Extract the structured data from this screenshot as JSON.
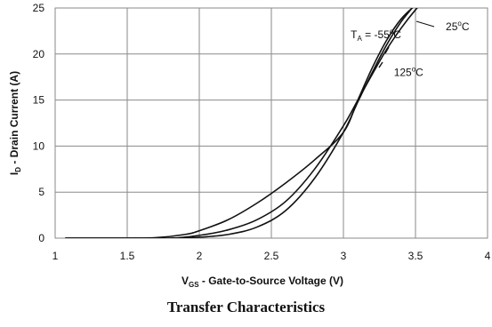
{
  "chart_data": {
    "type": "line",
    "title": "Transfer Characteristics",
    "xlabel": {
      "main": "V",
      "sub": "GS",
      "rest": " - Gate-to-Source Voltage (V)"
    },
    "ylabel": {
      "main": "I",
      "sub": "D",
      "rest": " - Drain Current (A)"
    },
    "xlim": [
      1,
      4
    ],
    "ylim": [
      0,
      25
    ],
    "x_ticks": [
      1,
      1.5,
      2,
      2.5,
      3,
      3.5,
      4
    ],
    "x_tick_labels": [
      "1",
      "1.5",
      "2",
      "2.5",
      "3",
      "3.5",
      "4"
    ],
    "y_ticks": [
      0,
      5,
      10,
      15,
      20,
      25
    ],
    "y_tick_labels": [
      "0",
      "5",
      "10",
      "15",
      "20",
      "25"
    ],
    "grid": true,
    "series": [
      {
        "name": "T_A = -55°C",
        "x": [
          1.07,
          1.5,
          1.8,
          2.0,
          2.2,
          2.4,
          2.6,
          2.8,
          3.0,
          3.1,
          3.2,
          3.3,
          3.4,
          3.5,
          3.6
        ],
        "y": [
          0,
          0,
          0,
          0.1,
          0.4,
          1.2,
          3.0,
          6.5,
          11.5,
          14.8,
          18.0,
          21.0,
          23.5,
          25.5,
          28
        ]
      },
      {
        "name": "25°C",
        "x": [
          1.07,
          1.5,
          1.8,
          2.0,
          2.2,
          2.4,
          2.6,
          2.8,
          3.0,
          3.1,
          3.2,
          3.3,
          3.4,
          3.5,
          3.6
        ],
        "y": [
          0,
          0,
          0,
          0.3,
          0.9,
          2.0,
          4.0,
          7.5,
          12.2,
          15.0,
          17.8,
          20.5,
          22.8,
          24.8,
          26.5
        ]
      },
      {
        "name": "125°C",
        "x": [
          1.07,
          1.5,
          1.7,
          1.9,
          2.0,
          2.2,
          2.4,
          2.6,
          2.8,
          3.0,
          3.1,
          3.2,
          3.3,
          3.4,
          3.5,
          3.6
        ],
        "y": [
          0,
          0,
          0.05,
          0.4,
          0.8,
          2.0,
          3.8,
          6.0,
          8.5,
          11.5,
          15.0,
          18.5,
          21.5,
          23.8,
          25.3,
          26.5
        ]
      }
    ],
    "annotations": [
      {
        "id": "t55",
        "main": "T",
        "sub": "A",
        "rest": " = -55",
        "deg": "o",
        "unit": "C",
        "x": 3.05,
        "y": 21.7
      },
      {
        "id": "t25",
        "main": "25",
        "deg": "o",
        "unit": "C",
        "x": 3.71,
        "y": 22.6
      },
      {
        "id": "t125",
        "main": "125",
        "deg": "o",
        "unit": "C",
        "x": 3.35,
        "y": 17.6
      }
    ],
    "colors": {
      "line": "#111111",
      "grid": "#8a8a8a",
      "text": "#111111",
      "background": "#ffffff"
    }
  }
}
